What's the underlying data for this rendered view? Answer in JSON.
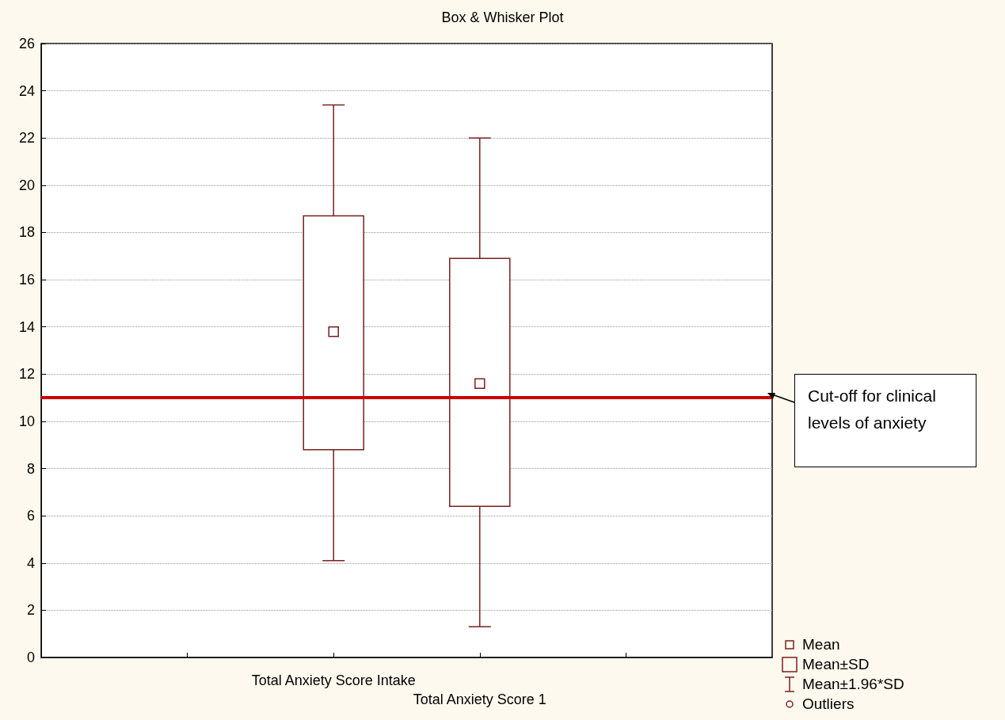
{
  "chart_data": {
    "type": "box",
    "title": "Box & Whisker Plot",
    "categories": [
      "Total Anxiety Score Intake",
      "Total Anxiety Score 1"
    ],
    "boxes": [
      {
        "low": 4.1,
        "q1": 8.8,
        "median": 13.8,
        "q3": 18.7,
        "high": 23.4
      },
      {
        "low": 1.3,
        "q1": 6.4,
        "median": 11.6,
        "q3": 16.9,
        "high": 22.0
      }
    ],
    "color": "#7a1f1f",
    "ylim": [
      0,
      26
    ],
    "yticks": [
      0,
      2,
      4,
      6,
      8,
      10,
      12,
      14,
      16,
      18,
      20,
      22,
      24,
      26
    ],
    "grid": "y",
    "legend": "bottom right",
    "ref_lines": [
      {
        "axis": "y",
        "value": 11,
        "label": "Cut-off for clinical levels of anxiety",
        "color": "#cc0000"
      }
    ],
    "annotations": [
      "Mean",
      "Mean±SD",
      "Mean±1.96*SD",
      "Outliers"
    ]
  }
}
